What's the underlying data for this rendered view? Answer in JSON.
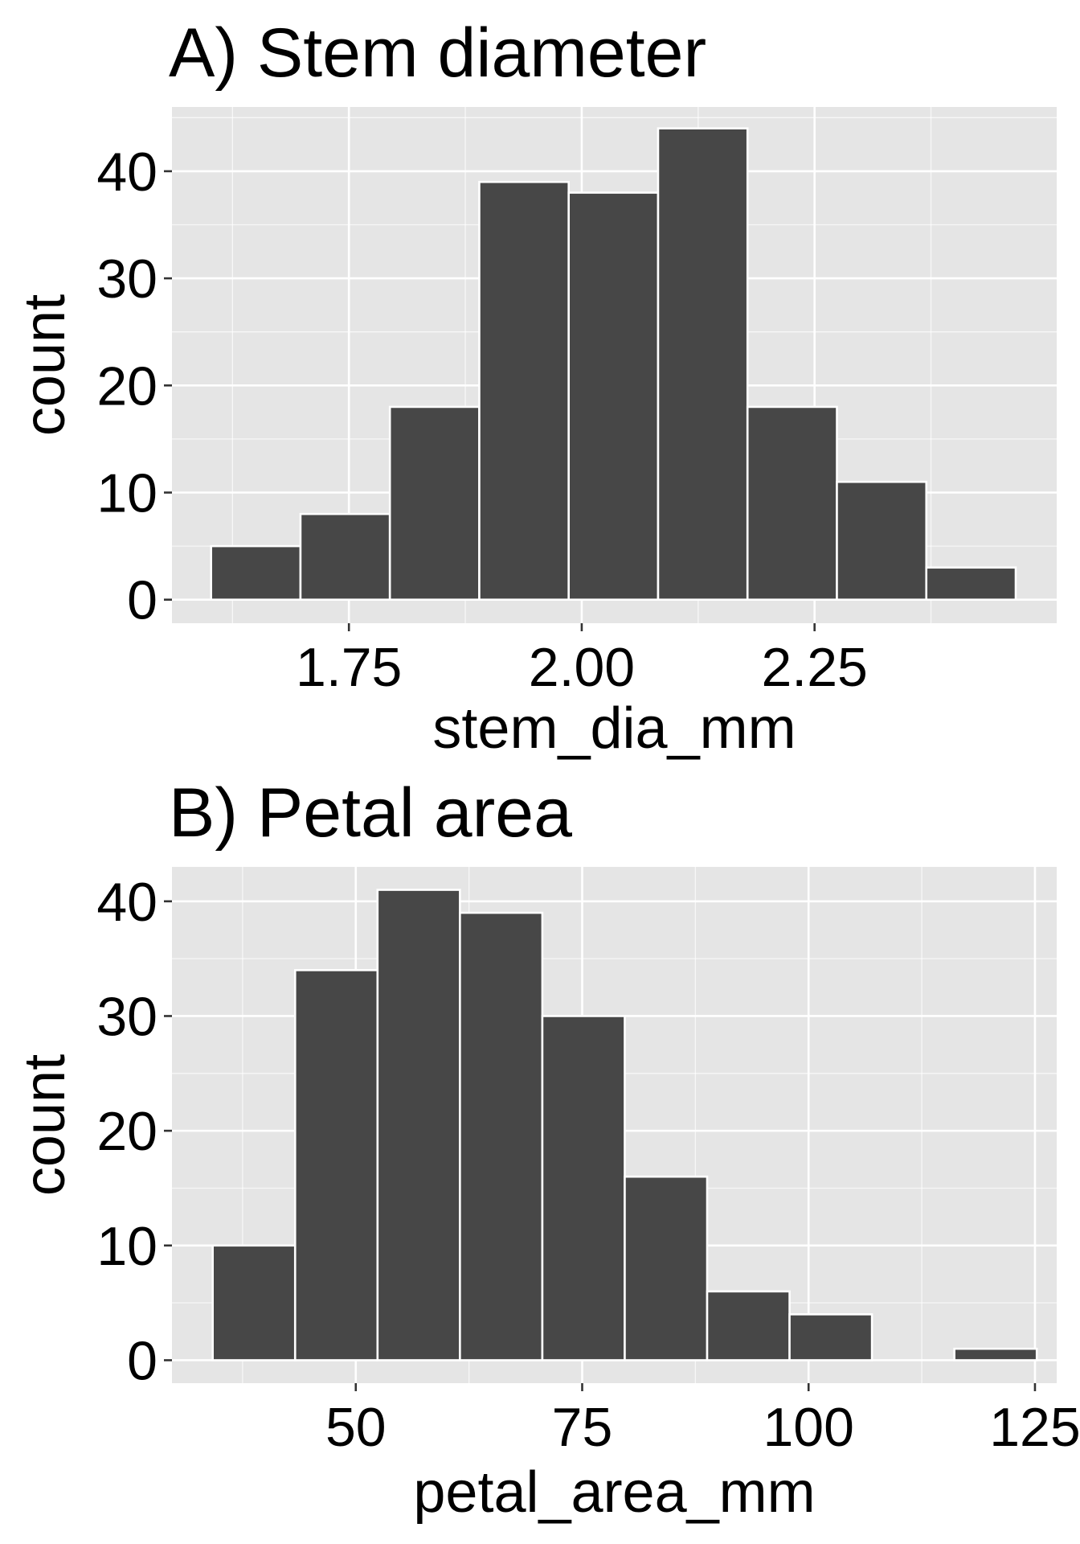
{
  "chart_data": [
    {
      "type": "bar",
      "title": "A) Stem diameter",
      "xlabel": "stem_dia_mm",
      "ylabel": "count",
      "x_ticks": [
        1.75,
        2.0,
        2.25
      ],
      "x_tick_labels": [
        "1.75",
        "2.00",
        "2.25"
      ],
      "y_ticks": [
        0,
        10,
        20,
        30,
        40
      ],
      "y_tick_labels": [
        "0",
        "10",
        "20",
        "30",
        "40"
      ],
      "xlim": [
        1.56,
        2.51
      ],
      "ylim": [
        -2.2,
        46
      ],
      "bins": [
        {
          "x0": 1.602,
          "x1": 1.698,
          "count": 5
        },
        {
          "x0": 1.698,
          "x1": 1.794,
          "count": 8
        },
        {
          "x0": 1.794,
          "x1": 1.89,
          "count": 18
        },
        {
          "x0": 1.89,
          "x1": 1.986,
          "count": 39
        },
        {
          "x0": 1.986,
          "x1": 2.082,
          "count": 38
        },
        {
          "x0": 2.082,
          "x1": 2.178,
          "count": 44
        },
        {
          "x0": 2.178,
          "x1": 2.274,
          "count": 18
        },
        {
          "x0": 2.274,
          "x1": 2.37,
          "count": 11
        },
        {
          "x0": 2.37,
          "x1": 2.466,
          "count": 3
        }
      ],
      "bar_color": "#474747",
      "bar_outline": "#ffffff",
      "panel_background": "#e5e5e5",
      "grid_color": "#ffffff",
      "grid": true
    },
    {
      "type": "bar",
      "title": "B) Petal area",
      "xlabel": "petal_area_mm",
      "ylabel": "count",
      "x_ticks": [
        50,
        75,
        100,
        125
      ],
      "x_tick_labels": [
        "50",
        "75",
        "100",
        "125"
      ],
      "y_ticks": [
        0,
        10,
        20,
        30,
        40
      ],
      "y_tick_labels": [
        "0",
        "10",
        "20",
        "30",
        "40"
      ],
      "xlim": [
        29.7,
        127.4
      ],
      "ylim": [
        -2.0,
        43.0
      ],
      "bins": [
        {
          "x0": 34.2,
          "x1": 43.3,
          "count": 10
        },
        {
          "x0": 43.3,
          "x1": 52.4,
          "count": 34
        },
        {
          "x0": 52.4,
          "x1": 61.5,
          "count": 41
        },
        {
          "x0": 61.5,
          "x1": 70.6,
          "count": 39
        },
        {
          "x0": 70.6,
          "x1": 79.7,
          "count": 30
        },
        {
          "x0": 79.7,
          "x1": 88.8,
          "count": 16
        },
        {
          "x0": 88.8,
          "x1": 97.9,
          "count": 6
        },
        {
          "x0": 97.9,
          "x1": 107.0,
          "count": 4
        },
        {
          "x0": 107.0,
          "x1": 116.1,
          "count": 0
        },
        {
          "x0": 116.1,
          "x1": 125.2,
          "count": 1
        }
      ],
      "bar_color": "#474747",
      "bar_outline": "#ffffff",
      "panel_background": "#e5e5e5",
      "grid_color": "#ffffff",
      "grid": true
    }
  ]
}
